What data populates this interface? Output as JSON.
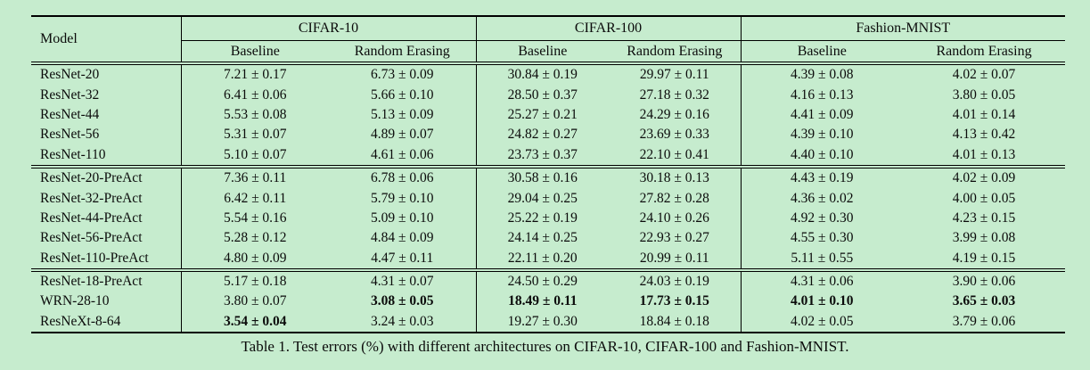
{
  "caption": "Table 1. Test errors (%) with different architectures on CIFAR-10, CIFAR-100 and Fashion-MNIST.",
  "colors": {
    "background": "#c6ecce",
    "text": "#0b0b0b",
    "rule": "#000000"
  },
  "table": {
    "model_header": "Model",
    "groups": [
      {
        "label": "CIFAR-10",
        "sub": [
          "Baseline",
          "Random Erasing"
        ]
      },
      {
        "label": "CIFAR-100",
        "sub": [
          "Baseline",
          "Random Erasing"
        ]
      },
      {
        "label": "Fashion-MNIST",
        "sub": [
          "Baseline",
          "Random Erasing"
        ]
      }
    ],
    "row_groups": [
      {
        "rows": [
          {
            "model": "ResNet-20",
            "values": [
              "7.21 ± 0.17",
              "6.73 ± 0.09",
              "30.84 ± 0.19",
              "29.97 ± 0.11",
              "4.39 ± 0.08",
              "4.02 ± 0.07"
            ],
            "bold": [
              false,
              false,
              false,
              false,
              false,
              false
            ]
          },
          {
            "model": "ResNet-32",
            "values": [
              "6.41 ± 0.06",
              "5.66 ± 0.10",
              "28.50 ± 0.37",
              "27.18 ± 0.32",
              "4.16 ± 0.13",
              "3.80 ± 0.05"
            ],
            "bold": [
              false,
              false,
              false,
              false,
              false,
              false
            ]
          },
          {
            "model": "ResNet-44",
            "values": [
              "5.53 ± 0.08",
              "5.13 ± 0.09",
              "25.27 ± 0.21",
              "24.29 ± 0.16",
              "4.41 ± 0.09",
              "4.01 ± 0.14"
            ],
            "bold": [
              false,
              false,
              false,
              false,
              false,
              false
            ]
          },
          {
            "model": "ResNet-56",
            "values": [
              "5.31 ± 0.07",
              "4.89 ± 0.07",
              "24.82 ± 0.27",
              "23.69 ± 0.33",
              "4.39 ± 0.10",
              "4.13 ± 0.42"
            ],
            "bold": [
              false,
              false,
              false,
              false,
              false,
              false
            ]
          },
          {
            "model": "ResNet-110",
            "values": [
              "5.10 ± 0.07",
              "4.61 ± 0.06",
              "23.73 ± 0.37",
              "22.10 ± 0.41",
              "4.40 ± 0.10",
              "4.01 ± 0.13"
            ],
            "bold": [
              false,
              false,
              false,
              false,
              false,
              false
            ]
          }
        ]
      },
      {
        "rows": [
          {
            "model": "ResNet-20-PreAct",
            "values": [
              "7.36 ± 0.11",
              "6.78 ± 0.06",
              "30.58 ± 0.16",
              "30.18 ± 0.13",
              "4.43 ± 0.19",
              "4.02 ± 0.09"
            ],
            "bold": [
              false,
              false,
              false,
              false,
              false,
              false
            ]
          },
          {
            "model": "ResNet-32-PreAct",
            "values": [
              "6.42 ± 0.11",
              "5.79 ± 0.10",
              "29.04 ± 0.25",
              "27.82 ± 0.28",
              "4.36 ± 0.02",
              "4.00 ± 0.05"
            ],
            "bold": [
              false,
              false,
              false,
              false,
              false,
              false
            ]
          },
          {
            "model": "ResNet-44-PreAct",
            "values": [
              "5.54 ± 0.16",
              "5.09 ± 0.10",
              "25.22 ± 0.19",
              "24.10 ± 0.26",
              "4.92 ± 0.30",
              "4.23 ± 0.15"
            ],
            "bold": [
              false,
              false,
              false,
              false,
              false,
              false
            ]
          },
          {
            "model": "ResNet-56-PreAct",
            "values": [
              "5.28 ± 0.12",
              "4.84 ± 0.09",
              "24.14 ± 0.25",
              "22.93 ± 0.27",
              "4.55 ± 0.30",
              "3.99 ± 0.08"
            ],
            "bold": [
              false,
              false,
              false,
              false,
              false,
              false
            ]
          },
          {
            "model": "ResNet-110-PreAct",
            "values": [
              "4.80 ± 0.09",
              "4.47 ± 0.11",
              "22.11 ± 0.20",
              "20.99 ± 0.11",
              "5.11 ± 0.55",
              "4.19 ± 0.15"
            ],
            "bold": [
              false,
              false,
              false,
              false,
              false,
              false
            ]
          }
        ]
      },
      {
        "rows": [
          {
            "model": "ResNet-18-PreAct",
            "values": [
              "5.17 ± 0.18",
              "4.31 ± 0.07",
              "24.50 ± 0.29",
              "24.03 ± 0.19",
              "4.31 ± 0.06",
              "3.90 ± 0.06"
            ],
            "bold": [
              false,
              false,
              false,
              false,
              false,
              false
            ]
          },
          {
            "model": "WRN-28-10",
            "values": [
              "3.80 ± 0.07",
              "3.08 ± 0.05",
              "18.49 ± 0.11",
              "17.73 ± 0.15",
              "4.01 ± 0.10",
              "3.65 ± 0.03"
            ],
            "bold": [
              false,
              true,
              true,
              true,
              true,
              true
            ]
          },
          {
            "model": "ResNeXt-8-64",
            "values": [
              "3.54 ± 0.04",
              "3.24 ± 0.03",
              "19.27 ± 0.30",
              "18.84 ± 0.18",
              "4.02 ± 0.05",
              "3.79 ± 0.06"
            ],
            "bold": [
              true,
              false,
              false,
              false,
              false,
              false
            ]
          }
        ]
      }
    ]
  }
}
